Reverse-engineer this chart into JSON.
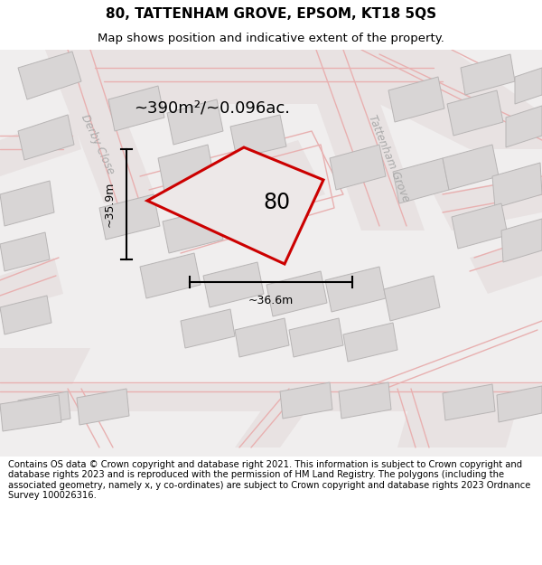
{
  "title": "80, TATTENHAM GROVE, EPSOM, KT18 5QS",
  "subtitle": "Map shows position and indicative extent of the property.",
  "footer": "Contains OS data © Crown copyright and database right 2021. This information is subject to Crown copyright and database rights 2023 and is reproduced with the permission of HM Land Registry. The polygons (including the associated geometry, namely x, y co-ordinates) are subject to Crown copyright and database rights 2023 Ordnance Survey 100026316.",
  "area_label": "~390m²/~0.096ac.",
  "width_label": "~36.6m",
  "height_label": "~35.9m",
  "number_label": "80",
  "map_bg": "#f0eeee",
  "road_fill": "#e8e2e2",
  "building_color": "#d8d5d5",
  "building_edge": "#b8b5b5",
  "red_outline": "#cc0000",
  "plot_fill": "#ede8e8",
  "street_label_color": "#aaaaaa",
  "pink_road": "#e8b0b0",
  "title_fontsize": 11,
  "subtitle_fontsize": 9.5,
  "footer_fontsize": 7.2
}
